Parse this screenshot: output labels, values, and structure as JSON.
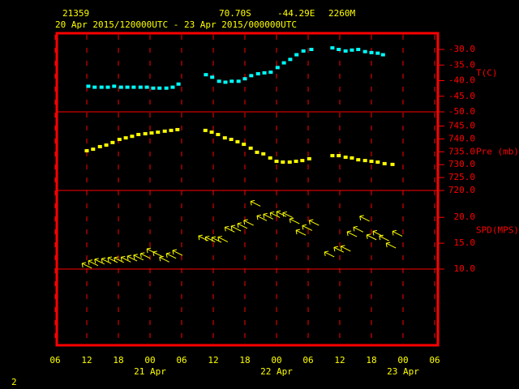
{
  "header": {
    "station": "21359",
    "latitude": "70.70S",
    "longitude": "-44.29E",
    "elevation": "2260M",
    "period": "20 Apr 2015/120000UTC - 23 Apr 2015/000000UTC",
    "page": "2"
  },
  "chart_data": [
    {
      "type": "scatter",
      "y_label": "T(C)",
      "color": "#00ffff",
      "ylim": [
        -50,
        -24.8
      ],
      "yticks": [
        {
          "value": -30,
          "label": "-30.0"
        },
        {
          "value": -35,
          "label": "-35.0"
        },
        {
          "value": -40,
          "label": "-40.0"
        },
        {
          "value": -45,
          "label": "-45.0"
        },
        {
          "value": -50,
          "label": "-50.0"
        }
      ],
      "x": [
        12.3,
        13.5,
        14.8,
        16,
        17.2,
        18.5,
        19.7,
        20.9,
        22.2,
        23.4,
        24.6,
        25.8,
        27.1,
        28.3,
        29.4,
        34.6,
        35.8,
        37.1,
        38.3,
        39.5,
        40.8,
        42,
        43.2,
        44.5,
        45.7,
        46.9,
        48.2,
        49.4,
        50.6,
        51.8,
        53.1,
        54.6,
        58.6,
        59.8,
        61.1,
        62.3,
        63.5,
        64.8,
        66,
        67.2,
        68.2
      ],
      "values": [
        -41.8,
        -42.1,
        -42.1,
        -42.1,
        -41.8,
        -42.1,
        -42.1,
        -42.1,
        -42.1,
        -42.1,
        -42.4,
        -42.4,
        -42.4,
        -42.1,
        -41.1,
        -38.1,
        -38.9,
        -40.2,
        -40.5,
        -40.2,
        -40.2,
        -39.4,
        -38.4,
        -37.8,
        -37.5,
        -37.3,
        -35.8,
        -34.3,
        -33.2,
        -31.7,
        -30.5,
        -30.0,
        -29.5,
        -30.0,
        -30.5,
        -30.2,
        -30.0,
        -30.7,
        -31.0,
        -31.2,
        -31.7
      ]
    },
    {
      "type": "scatter",
      "y_label": "Pre (mb)",
      "color": "#ffff00",
      "ylim": [
        720,
        750.5
      ],
      "yticks": [
        {
          "value": 745,
          "label": "745.0"
        },
        {
          "value": 740,
          "label": "740.0"
        },
        {
          "value": 735,
          "label": "735.0"
        },
        {
          "value": 730,
          "label": "730.0"
        },
        {
          "value": 725,
          "label": "725.0"
        },
        {
          "value": 720,
          "label": "720.0"
        }
      ],
      "x": [
        12,
        13.2,
        14.5,
        15.7,
        16.9,
        18.2,
        19.4,
        20.6,
        21.8,
        23.1,
        24.3,
        25.5,
        26.8,
        28,
        29.2,
        34.5,
        35.7,
        36.9,
        38.2,
        39.4,
        40.6,
        41.8,
        43.1,
        44.3,
        45.5,
        46.8,
        48,
        49.2,
        50.5,
        51.7,
        52.9,
        54.2,
        58.6,
        59.8,
        61.1,
        62.3,
        63.5,
        64.8,
        66,
        67.2,
        68.5,
        70
      ],
      "values": [
        735.4,
        736,
        737,
        737.6,
        738.6,
        739.8,
        740.4,
        741,
        741.7,
        742,
        742.3,
        742.6,
        743,
        743.3,
        743.6,
        743.3,
        742.6,
        741.7,
        740.4,
        739.8,
        738.9,
        737.9,
        736.4,
        734.8,
        734.2,
        732.6,
        731.3,
        731,
        731,
        731.3,
        731.6,
        732.3,
        733.5,
        733.5,
        732.9,
        732.6,
        731.9,
        731.6,
        731.3,
        731,
        730.4,
        730.1
      ]
    },
    {
      "type": "arrows",
      "y_label": "SPD(MPS)",
      "color": "#ffff00",
      "ylim": [
        10,
        25.2
      ],
      "yticks": [
        {
          "value": 20,
          "label": "20.0"
        },
        {
          "value": 15,
          "label": "15.0"
        },
        {
          "value": 10,
          "label": "10.0"
        }
      ],
      "x": [
        11.1,
        12.3,
        13.5,
        14.8,
        16,
        17.2,
        18.5,
        19.7,
        20.9,
        22.2,
        23.4,
        24.6,
        25.8,
        27.1,
        28.3,
        33.2,
        34.5,
        35.7,
        36.9,
        38.2,
        39.4,
        40.6,
        41.8,
        43.1,
        44.3,
        45.5,
        46.8,
        48,
        49.2,
        50.5,
        51.7,
        52.9,
        54.2,
        57.1,
        58.9,
        60.2,
        61.4,
        62.6,
        63.8,
        65.1,
        66.3,
        67.5,
        68.8,
        70
      ],
      "values": [
        11.1,
        11.6,
        11.9,
        12,
        12.2,
        12.2,
        12.3,
        12.5,
        12.7,
        13,
        13.9,
        13.3,
        12.3,
        13,
        13.6,
        16.4,
        16.2,
        16.1,
        16.2,
        18.1,
        18.3,
        18.8,
        19.4,
        23.1,
        20.3,
        20.6,
        20.9,
        21.1,
        20.9,
        19.7,
        17.5,
        18.4,
        19.4,
        13.3,
        14.2,
        14.4,
        17.2,
        18.1,
        20.2,
        16.6,
        17.3,
        16.4,
        15,
        17.3
      ],
      "xlim": [
        6,
        78
      ],
      "xticks": [
        {
          "value": 6,
          "label": "06"
        },
        12,
        18,
        {
          "value": 24,
          "label": "00"
        },
        {
          "value": 30,
          "label": "06"
        },
        {
          "value": 36,
          "label": "12"
        },
        {
          "value": 42,
          "label": "18"
        },
        {
          "value": 48,
          "label": "00"
        },
        {
          "value": 54,
          "label": "06"
        },
        {
          "value": 60,
          "label": "12"
        },
        {
          "value": 66,
          "label": "18"
        },
        {
          "value": 72,
          "label": "00"
        },
        {
          "value": 78,
          "label": "06"
        }
      ],
      "x_date_labels": [
        {
          "value": 24,
          "label": "21 Apr"
        },
        {
          "value": 48,
          "label": "22 Apr"
        },
        {
          "value": 72,
          "label": "23 Apr"
        }
      ]
    }
  ]
}
